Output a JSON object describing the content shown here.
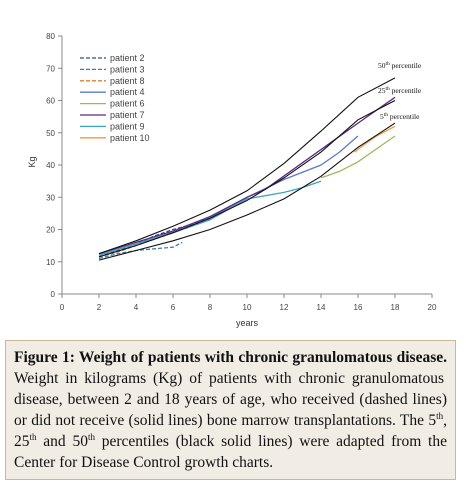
{
  "chart_data": {
    "type": "line",
    "xlabel": "years",
    "ylabel": "Kg",
    "xlim": [
      0,
      20
    ],
    "ylim": [
      0,
      80
    ],
    "xticks": [
      0,
      2,
      4,
      6,
      8,
      10,
      12,
      14,
      16,
      18,
      20
    ],
    "yticks": [
      0,
      10,
      20,
      30,
      40,
      50,
      60,
      70,
      80
    ],
    "grid": false,
    "legend_position": "top-left",
    "series": [
      {
        "name": "patient 2",
        "style": "dashed",
        "color": "#2f4f8f",
        "points": [
          [
            2,
            11.5
          ],
          [
            3,
            13.5
          ],
          [
            4,
            15.5
          ],
          [
            5,
            18
          ],
          [
            6,
            20
          ],
          [
            7,
            21.5
          ],
          [
            8,
            23.5
          ]
        ]
      },
      {
        "name": "patient 3",
        "style": "dashed",
        "color": "#3a7fb5",
        "points": [
          [
            2,
            11
          ],
          [
            3,
            12.5
          ],
          [
            4,
            13.5
          ],
          [
            5,
            14
          ],
          [
            6,
            14.5
          ],
          [
            6.5,
            16
          ]
        ]
      },
      {
        "name": "patient 8",
        "style": "dashed",
        "color": "#e07b2a",
        "points": [
          [
            2,
            11.5
          ],
          [
            3,
            13
          ],
          [
            4,
            15
          ],
          [
            5,
            17
          ],
          [
            6,
            19
          ],
          [
            7,
            21
          ],
          [
            8,
            23
          ]
        ]
      },
      {
        "name": "patient 4",
        "style": "solid",
        "color": "#5a7cc9",
        "points": [
          [
            2,
            12
          ],
          [
            4,
            15.5
          ],
          [
            6,
            19
          ],
          [
            8,
            23.5
          ],
          [
            10,
            30
          ],
          [
            12,
            35.5
          ],
          [
            14,
            40
          ],
          [
            15,
            44
          ],
          [
            16,
            49
          ]
        ]
      },
      {
        "name": "patient 6",
        "style": "solid",
        "color": "#9bbb59",
        "points": [
          [
            14,
            36
          ],
          [
            15,
            38
          ],
          [
            16,
            41
          ],
          [
            17,
            45
          ],
          [
            18,
            49
          ]
        ]
      },
      {
        "name": "patient 7",
        "style": "solid",
        "color": "#5b2a86",
        "points": [
          [
            2,
            12.5
          ],
          [
            4,
            16
          ],
          [
            6,
            19.5
          ],
          [
            8,
            24
          ],
          [
            10,
            30
          ],
          [
            11,
            32.5
          ],
          [
            16,
            53
          ],
          [
            17,
            57
          ],
          [
            18,
            61
          ]
        ]
      },
      {
        "name": "patient 9",
        "style": "solid",
        "color": "#3aa5c4",
        "points": [
          [
            2,
            12
          ],
          [
            4,
            15.5
          ],
          [
            6,
            19
          ],
          [
            8,
            23
          ],
          [
            10,
            29.5
          ],
          [
            12,
            31.5
          ],
          [
            13,
            33
          ],
          [
            14,
            35
          ]
        ]
      },
      {
        "name": "patient 10",
        "style": "solid",
        "color": "#f29a38",
        "points": [
          [
            15.8,
            44
          ],
          [
            16.5,
            47
          ],
          [
            17,
            49
          ],
          [
            18,
            52
          ]
        ]
      },
      {
        "name": "50th percentile",
        "style": "solid",
        "color": "#111111",
        "points": [
          [
            2,
            12.5
          ],
          [
            4,
            16.5
          ],
          [
            6,
            21
          ],
          [
            8,
            26
          ],
          [
            10,
            32
          ],
          [
            12,
            40.5
          ],
          [
            14,
            50.5
          ],
          [
            16,
            61
          ],
          [
            18,
            67
          ]
        ]
      },
      {
        "name": "25th percentile",
        "style": "solid",
        "color": "#111111",
        "points": [
          [
            2,
            11.5
          ],
          [
            4,
            15
          ],
          [
            6,
            19
          ],
          [
            8,
            23.5
          ],
          [
            10,
            29
          ],
          [
            12,
            36
          ],
          [
            14,
            44
          ],
          [
            16,
            54
          ],
          [
            18,
            60
          ]
        ]
      },
      {
        "name": "5th percentile",
        "style": "solid",
        "color": "#111111",
        "points": [
          [
            2,
            10.5
          ],
          [
            4,
            13.5
          ],
          [
            6,
            16.5
          ],
          [
            8,
            20
          ],
          [
            10,
            24.5
          ],
          [
            12,
            29.5
          ],
          [
            14,
            36.5
          ],
          [
            16,
            45.5
          ],
          [
            18,
            53
          ]
        ]
      }
    ],
    "percentile_labels": [
      {
        "base": "50",
        "sup": "th",
        "text": " percentile"
      },
      {
        "base": "25",
        "sup": "th",
        "text": " percentile"
      },
      {
        "base": "5",
        "sup": "th",
        "text": " percentile"
      }
    ]
  },
  "caption": {
    "title": "Figure 1: Weight of patients with chronic granulomatous disease.",
    "body_1": " Weight in kilograms (Kg) of patients with chronic granulomatous disease, between 2 and 18 years of age, who received (dashed lines) or did not receive (solid lines) bone marrow transplantations. The 5",
    "sup_1": "th",
    "body_2": ", 25",
    "sup_2": "th",
    "body_3": " and 50",
    "sup_3": "th",
    "body_4": " percentiles (black solid lines) were adapted from the Center for Disease Control growth charts."
  }
}
